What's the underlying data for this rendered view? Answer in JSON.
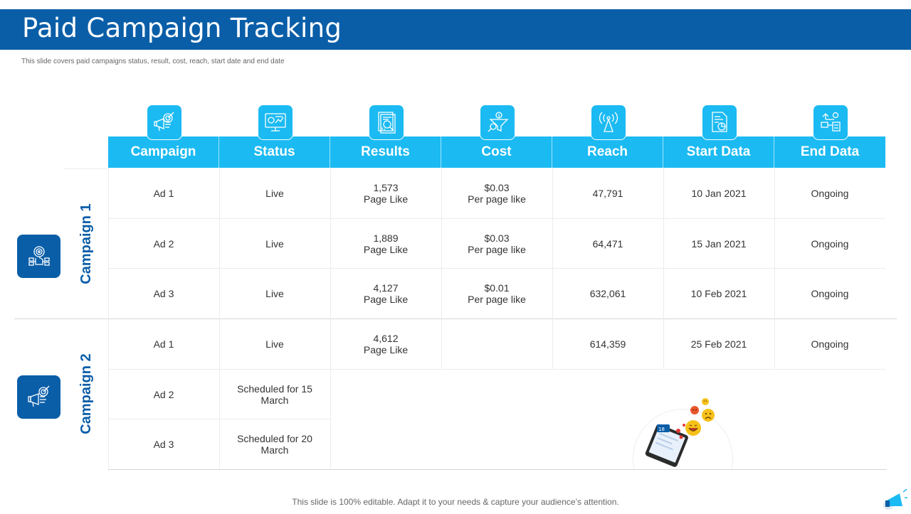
{
  "header": {
    "title": "Paid Campaign Tracking",
    "subtitle": "This slide covers paid campaigns status, result, cost, reach, start date and end date"
  },
  "columns": [
    {
      "label": "Campaign",
      "icon": "megaphone-target-icon"
    },
    {
      "label": "Status",
      "icon": "monitor-dashboard-icon"
    },
    {
      "label": "Results",
      "icon": "report-magnifier-icon"
    },
    {
      "label": "Cost",
      "icon": "funnel-search-icon"
    },
    {
      "label": "Reach",
      "icon": "broadcast-tower-icon"
    },
    {
      "label": "Start Data",
      "icon": "document-chart-icon"
    },
    {
      "label": "End Data",
      "icon": "settings-flow-icon"
    }
  ],
  "campaigns": [
    {
      "label": "Campaign 1",
      "icon": "target-hand-icon",
      "rows": [
        {
          "campaign": "Ad 1",
          "status": "Live",
          "results": [
            "1,573",
            "Page Like"
          ],
          "cost": [
            "$0.03",
            "Per page like"
          ],
          "reach": "47,791",
          "start": "10 Jan 2021",
          "end": "Ongoing"
        },
        {
          "campaign": "Ad 2",
          "status": "Live",
          "results": [
            "1,889",
            "Page Like"
          ],
          "cost": [
            "$0.03",
            "Per page like"
          ],
          "reach": "64,471",
          "start": "15 Jan 2021",
          "end": "Ongoing"
        },
        {
          "campaign": "Ad 3",
          "status": "Live",
          "results": [
            "4,127",
            "Page Like"
          ],
          "cost": [
            "$0.01",
            "Per page like"
          ],
          "reach": "632,061",
          "start": "10 Feb 2021",
          "end": "Ongoing"
        }
      ]
    },
    {
      "label": "Campaign 2",
      "icon": "megaphone-target-icon",
      "rows": [
        {
          "campaign": "Ad 1",
          "status": "Live",
          "results": [
            "4,612",
            "Page Like"
          ],
          "cost": [
            "",
            ""
          ],
          "reach": "614,359",
          "start": "25 Feb 2021",
          "end": "Ongoing"
        },
        {
          "campaign": "Ad 2",
          "status": [
            "Scheduled for 15",
            "March"
          ]
        },
        {
          "campaign": "Ad 3",
          "status": [
            "Scheduled for 20",
            "March"
          ]
        }
      ]
    }
  ],
  "illustration": {
    "icon": "phone-emoji-reactions-icon",
    "badge": "18"
  },
  "footer": "This slide is 100% editable. Adapt it to your needs & capture your audience’s attention.",
  "colors": {
    "brand": "#0A5EA8",
    "accent": "#1BBAF2"
  }
}
